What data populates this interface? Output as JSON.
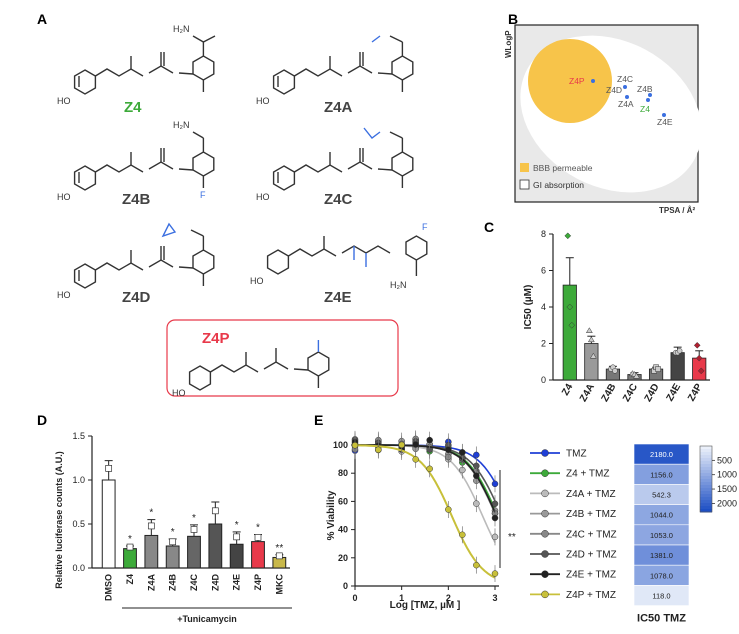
{
  "panels": {
    "A": "A",
    "B": "B",
    "C": "C",
    "D": "D",
    "E": "E"
  },
  "compounds": {
    "z4": "Z4",
    "z4a": "Z4A",
    "z4b": "Z4B",
    "z4c": "Z4C",
    "z4d": "Z4D",
    "z4e": "Z4E",
    "z4p": "Z4P",
    "atoms": {
      "ho": "HO",
      "nh": "H",
      "n": "N",
      "nh2": "H₂N",
      "o": "O",
      "f": "F",
      "hn": "HN"
    }
  },
  "colors": {
    "green": "#3daa3a",
    "red": "#e8394a",
    "blue": "#3b6fe0",
    "yellow": "#f7c44a",
    "dark": "#333333",
    "heat_dark": "#1d4fc4"
  },
  "chart_data": [
    {
      "type": "scatter",
      "panel": "B",
      "xlabel": "TPSA / Å²",
      "ylabel": "WLogP",
      "points": [
        {
          "name": "Z4P",
          "color": "red"
        },
        {
          "name": "Z4C",
          "color": "gray"
        },
        {
          "name": "Z4D",
          "color": "gray"
        },
        {
          "name": "Z4B",
          "color": "gray"
        },
        {
          "name": "Z4A",
          "color": "gray"
        },
        {
          "name": "Z4",
          "color": "green"
        },
        {
          "name": "Z4E",
          "color": "gray"
        }
      ],
      "legend": [
        "BBB permeable",
        "GI absorption"
      ]
    },
    {
      "type": "bar",
      "panel": "C",
      "ylabel": "IC50 (µM)",
      "ylim": [
        0,
        8
      ],
      "yticks": [
        0,
        2,
        4,
        6,
        8
      ],
      "categories": [
        "Z4",
        "Z4A",
        "Z4B",
        "Z4C",
        "Z4D",
        "Z4E",
        "Z4P"
      ],
      "values": [
        5.2,
        2.0,
        0.6,
        0.3,
        0.6,
        1.5,
        1.2
      ],
      "errors": [
        1.5,
        0.4,
        0.15,
        0.1,
        0.1,
        0.3,
        0.4
      ],
      "points": [
        [
          7.9,
          4.0,
          3.0
        ],
        [
          2.7,
          2.2,
          1.3
        ],
        [
          0.6,
          0.7,
          0.5
        ],
        [
          0.35,
          0.3,
          0.2
        ],
        [
          0.5,
          0.7,
          0.6
        ],
        [
          1.5,
          1.5,
          1.6
        ],
        [
          1.9,
          1.2,
          0.5
        ]
      ]
    },
    {
      "type": "bar",
      "panel": "D",
      "ylabel": "Relative luciferase counts (A.U.)",
      "ylim": [
        0,
        1.5
      ],
      "yticks": [
        "0.0",
        "0.5",
        "1.0",
        "1.5"
      ],
      "categories": [
        "DMSO",
        "Z4",
        "Z4A",
        "Z4B",
        "Z4C",
        "Z4D",
        "Z4E",
        "Z4P",
        "MKC"
      ],
      "values": [
        1.0,
        0.22,
        0.37,
        0.25,
        0.36,
        0.5,
        0.27,
        0.3,
        0.12
      ],
      "errors": [
        0.22,
        0.03,
        0.18,
        0.08,
        0.13,
        0.25,
        0.14,
        0.08,
        0.03
      ],
      "significance": [
        "",
        "*",
        "*",
        "*",
        "*",
        "",
        "*",
        "*",
        "**"
      ],
      "xlabel": "+Tunicamycin"
    },
    {
      "type": "line",
      "panel": "E",
      "xlabel": "Log [TMZ, µM ]",
      "ylabel": "% Viability",
      "xlim": [
        0,
        3
      ],
      "ylim": [
        0,
        100
      ],
      "xticks": [
        0,
        1,
        2,
        3
      ],
      "yticks": [
        0,
        20,
        40,
        60,
        80,
        100
      ],
      "series": [
        {
          "name": "TMZ",
          "ic50_log": 3.34
        },
        {
          "name": "Z4 + TMZ",
          "ic50_log": 3.06
        },
        {
          "name": "Z4A + TMZ",
          "ic50_log": 2.73
        },
        {
          "name": "Z4B + TMZ",
          "ic50_log": 3.02
        },
        {
          "name": "Z4C + TMZ",
          "ic50_log": 3.02
        },
        {
          "name": "Z4D + TMZ",
          "ic50_log": 3.14
        },
        {
          "name": "Z4E + TMZ",
          "ic50_log": 3.03
        },
        {
          "name": "Z4P + TMZ",
          "ic50_log": 2.07
        }
      ],
      "annotation": "**"
    },
    {
      "type": "heatmap",
      "panel": "E",
      "title": "IC50 TMZ",
      "values": [
        "2180.0",
        "1156.0",
        "542.3",
        "1044.0",
        "1053.0",
        "1381.0",
        "1078.0",
        "118.0"
      ],
      "colorbar_ticks": [
        "500",
        "1000",
        "1500",
        "2000"
      ],
      "colorbar_range": [
        0,
        2300
      ]
    }
  ]
}
